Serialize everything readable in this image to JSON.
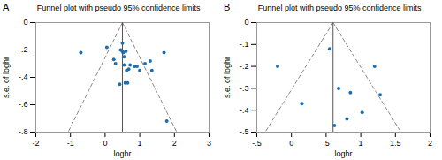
{
  "chart_data": [
    {
      "type": "scatter",
      "title": "Funnel plot with pseudo 95% confidence limits",
      "annotations": [
        "A"
      ],
      "xlabel": "loghr",
      "ylabel": "s.e. of loghr",
      "xlim": [
        -2,
        3
      ],
      "ylim": [
        -0.8,
        0
      ],
      "xticks": [
        -2,
        -1,
        0,
        1,
        2,
        3
      ],
      "yticks": [
        0,
        {
          "value": -0.2,
          "label": "-.2"
        },
        {
          "value": -0.4,
          "label": "-.4"
        },
        {
          "value": -0.6,
          "label": "-.6"
        },
        {
          "value": -0.8,
          "label": "-.8"
        }
      ],
      "series": [
        {
          "type": "line",
          "line_style": "dashed",
          "color": "#888888",
          "x": [
            0.5,
            -1.068
          ],
          "y": [
            0,
            -0.8
          ]
        },
        {
          "type": "line",
          "line_style": "dashed",
          "color": "#888888",
          "x": [
            0.5,
            2.068
          ],
          "y": [
            0,
            -0.8
          ]
        },
        {
          "type": "line",
          "line_style": "solid",
          "color": "#555555",
          "x": [
            0.5,
            0.5
          ],
          "y": [
            0,
            -0.8
          ]
        },
        {
          "type": "scatter",
          "marker": "circle",
          "color": "#1f6fad",
          "x": [
            -0.7,
            0.05,
            0.25,
            0.3,
            0.42,
            0.45,
            0.5,
            0.5,
            0.52,
            0.55,
            0.55,
            0.58,
            0.6,
            0.62,
            0.65,
            0.68,
            0.72,
            0.85,
            0.92,
            1.0,
            1.15,
            1.3,
            1.35,
            1.7,
            1.78
          ],
          "y": [
            -0.22,
            -0.18,
            -0.27,
            -0.3,
            -0.45,
            -0.2,
            -0.15,
            -0.21,
            -0.22,
            -0.25,
            -0.31,
            -0.44,
            -0.21,
            -0.35,
            -0.44,
            -0.34,
            -0.31,
            -0.32,
            -0.32,
            -0.35,
            -0.3,
            -0.28,
            -0.35,
            -0.22,
            -0.72
          ]
        }
      ]
    },
    {
      "type": "scatter",
      "title": "Funnel plot with pseudo 95% confidence limits",
      "annotations": [
        "B"
      ],
      "xlabel": "loghr",
      "ylabel": "s.e. of loghr",
      "xlim": [
        -0.5,
        2
      ],
      "ylim": [
        -0.5,
        0
      ],
      "xticks": [
        {
          "value": -0.5,
          "label": "-.5"
        },
        0,
        {
          "value": 0.5,
          "label": ".5"
        },
        1,
        1.5,
        2
      ],
      "yticks": [
        0,
        {
          "value": -0.1,
          "label": "-.1"
        },
        {
          "value": -0.2,
          "label": "-.2"
        },
        {
          "value": -0.3,
          "label": "-.3"
        },
        {
          "value": -0.4,
          "label": "-.4"
        },
        {
          "value": -0.5,
          "label": "-.5"
        }
      ],
      "series": [
        {
          "type": "line",
          "line_style": "dashed",
          "color": "#888888",
          "x": [
            0.6,
            -0.38
          ],
          "y": [
            0,
            -0.5
          ]
        },
        {
          "type": "line",
          "line_style": "dashed",
          "color": "#888888",
          "x": [
            0.6,
            1.58
          ],
          "y": [
            0,
            -0.5
          ]
        },
        {
          "type": "line",
          "line_style": "solid",
          "color": "#555555",
          "x": [
            0.6,
            0.6
          ],
          "y": [
            0,
            -0.5
          ]
        },
        {
          "type": "scatter",
          "marker": "circle",
          "color": "#1f6fad",
          "x": [
            -0.2,
            0.15,
            0.55,
            0.62,
            0.68,
            0.8,
            0.85,
            1.02,
            1.2,
            1.28
          ],
          "y": [
            -0.2,
            -0.37,
            -0.12,
            -0.47,
            -0.3,
            -0.44,
            -0.32,
            -0.41,
            -0.2,
            -0.33
          ]
        }
      ]
    }
  ]
}
